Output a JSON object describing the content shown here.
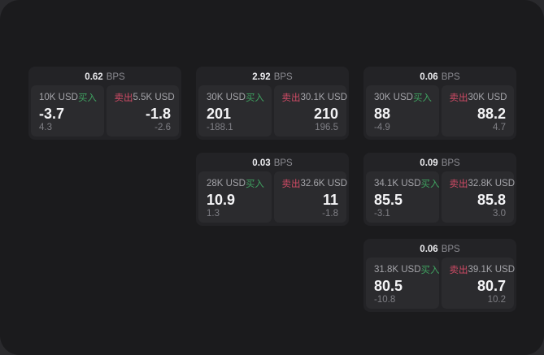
{
  "labels": {
    "bps": "BPS",
    "buy": "买入",
    "sell": "卖出"
  },
  "colors": {
    "buy": "#3fa160",
    "sell": "#d14b66",
    "page_background": "#1b1b1d",
    "card_background": "#232326",
    "panel_background": "#2b2b2e"
  },
  "cards": [
    {
      "bps": "0.62",
      "row": 1,
      "col": 1,
      "buy": {
        "amount": "10K USD",
        "main": "-3.7",
        "sub": "4.3"
      },
      "sell": {
        "amount": "5.5K USD",
        "main": "-1.8",
        "sub": "-2.6"
      }
    },
    {
      "bps": "2.92",
      "row": 1,
      "col": 2,
      "buy": {
        "amount": "30K USD",
        "main": "201",
        "sub": "-188.1"
      },
      "sell": {
        "amount": "30.1K USD",
        "main": "210",
        "sub": "196.5"
      }
    },
    {
      "bps": "0.06",
      "row": 1,
      "col": 3,
      "buy": {
        "amount": "30K USD",
        "main": "88",
        "sub": "-4.9"
      },
      "sell": {
        "amount": "30K USD",
        "main": "88.2",
        "sub": "4.7"
      }
    },
    {
      "bps": "0.03",
      "row": 2,
      "col": 2,
      "buy": {
        "amount": "28K USD",
        "main": "10.9",
        "sub": "1.3"
      },
      "sell": {
        "amount": "32.6K USD",
        "main": "11",
        "sub": "-1.8"
      }
    },
    {
      "bps": "0.09",
      "row": 2,
      "col": 3,
      "buy": {
        "amount": "34.1K USD",
        "main": "85.5",
        "sub": "-3.1"
      },
      "sell": {
        "amount": "32.8K USD",
        "main": "85.8",
        "sub": "3.0"
      }
    },
    {
      "bps": "0.06",
      "row": 3,
      "col": 3,
      "buy": {
        "amount": "31.8K USD",
        "main": "80.5",
        "sub": "-10.8"
      },
      "sell": {
        "amount": "39.1K USD",
        "main": "80.7",
        "sub": "10.2"
      }
    }
  ]
}
